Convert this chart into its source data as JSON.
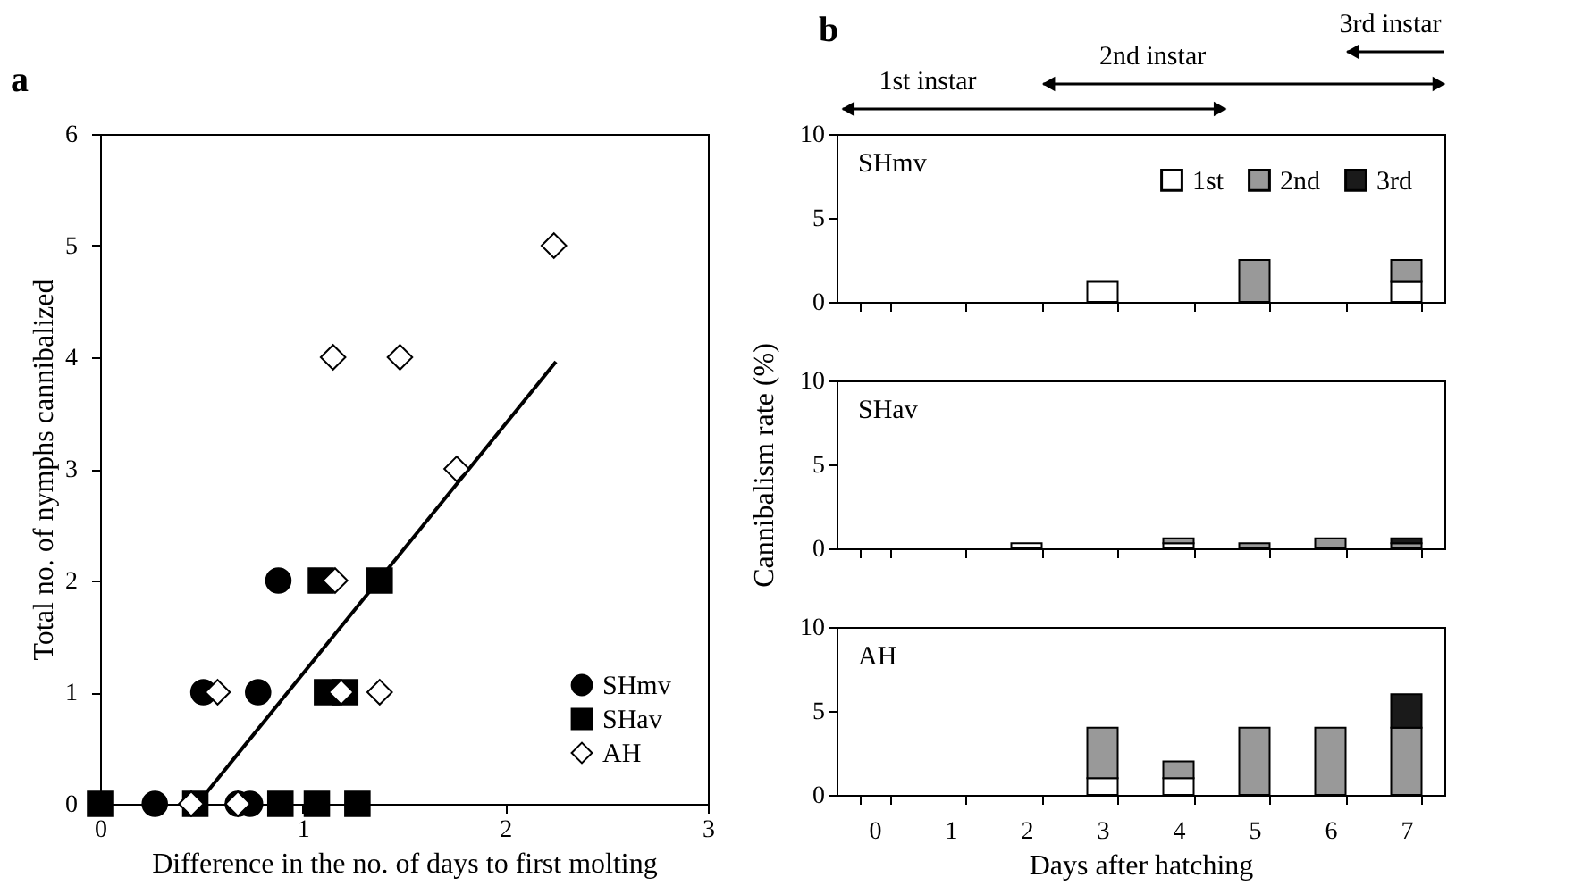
{
  "chart_data": [
    {
      "type": "scatter",
      "xlabel": "Difference in the no. of days to first molting",
      "ylabel": "Total no. of nymphs cannibalized",
      "annotations": [
        "a"
      ],
      "xlim": [
        0,
        3
      ],
      "ylim": [
        0,
        6
      ],
      "xticks": [
        0,
        1,
        2,
        3
      ],
      "yticks": [
        0,
        1,
        2,
        3,
        4,
        5,
        6
      ],
      "grid": false,
      "legend": "bottom right",
      "series": [
        {
          "name": "SHmv",
          "color": "#000000",
          "marker": "circle",
          "x": [
            0.27,
            0.68,
            0.74,
            0.51,
            0.78,
            0.88
          ],
          "values": [
            0,
            0,
            0,
            1,
            1,
            2
          ]
        },
        {
          "name": "SHav",
          "color": "#000000",
          "marker": "square",
          "x": [
            0,
            0.47,
            0.89,
            1.07,
            1.27,
            1.12,
            1.21,
            1.09,
            1.38
          ],
          "values": [
            0,
            0,
            0,
            0,
            0,
            1,
            1,
            2,
            2
          ]
        },
        {
          "name": "AH",
          "color": "#ffffff",
          "marker": "diamond",
          "x": [
            0.45,
            0.68,
            0.58,
            1.19,
            1.38,
            1.16,
            1.76,
            1.15,
            1.48,
            2.24
          ],
          "values": [
            0,
            0,
            1,
            1,
            1,
            2,
            3,
            4,
            4,
            5
          ]
        },
        {
          "type": "line",
          "color": "#000000",
          "marker": "none",
          "x": [
            0.48,
            2.25
          ],
          "values": [
            0,
            3.96
          ]
        }
      ]
    },
    {
      "type": "bar",
      "title": "SHmv",
      "stacked": true,
      "annotations": [
        "b",
        "1st instar",
        "2nd instar",
        "3rd instar"
      ],
      "categories": [
        "0",
        "1",
        "2",
        "3",
        "4",
        "5",
        "6",
        "7"
      ],
      "ylim": [
        0,
        10
      ],
      "yticks": [
        0,
        5,
        10
      ],
      "tick_labels": "y",
      "legend": "top right",
      "series": [
        {
          "name": "1st",
          "color": "#ffffff",
          "values": [
            null,
            null,
            null,
            1.2,
            null,
            null,
            null,
            1.2
          ]
        },
        {
          "name": "2nd",
          "color": "#999999",
          "values": [
            null,
            null,
            null,
            null,
            null,
            2.5,
            null,
            1.3
          ]
        },
        {
          "name": "3rd",
          "color": "#1a1a1a",
          "values": [
            null,
            null,
            null,
            null,
            null,
            null,
            null,
            null
          ]
        }
      ]
    },
    {
      "type": "bar",
      "title": "SHav",
      "stacked": true,
      "ylabel": "Cannibalism rate (%)",
      "categories": [
        "0",
        "1",
        "2",
        "3",
        "4",
        "5",
        "6",
        "7"
      ],
      "ylim": [
        0,
        10
      ],
      "yticks": [
        0,
        5,
        10
      ],
      "tick_labels": "y",
      "series": [
        {
          "color": "#ffffff",
          "values": [
            null,
            null,
            0.3,
            null,
            0.3,
            null,
            null,
            null
          ]
        },
        {
          "color": "#999999",
          "values": [
            null,
            null,
            null,
            null,
            0.3,
            0.3,
            0.6,
            0.3
          ]
        },
        {
          "color": "#1a1a1a",
          "values": [
            null,
            null,
            null,
            null,
            null,
            null,
            null,
            0.3
          ]
        }
      ]
    },
    {
      "type": "bar",
      "title": "AH",
      "stacked": true,
      "xlabel": "Days after hatching",
      "categories": [
        "0",
        "1",
        "2",
        "3",
        "4",
        "5",
        "6",
        "7"
      ],
      "ylim": [
        0,
        10
      ],
      "yticks": [
        0,
        5,
        10
      ],
      "series": [
        {
          "color": "#ffffff",
          "values": [
            null,
            null,
            null,
            1,
            1,
            null,
            null,
            null
          ]
        },
        {
          "color": "#999999",
          "values": [
            null,
            null,
            null,
            3,
            1,
            4,
            4,
            4
          ]
        },
        {
          "color": "#1a1a1a",
          "values": [
            null,
            null,
            null,
            null,
            null,
            null,
            null,
            2
          ]
        }
      ]
    }
  ]
}
